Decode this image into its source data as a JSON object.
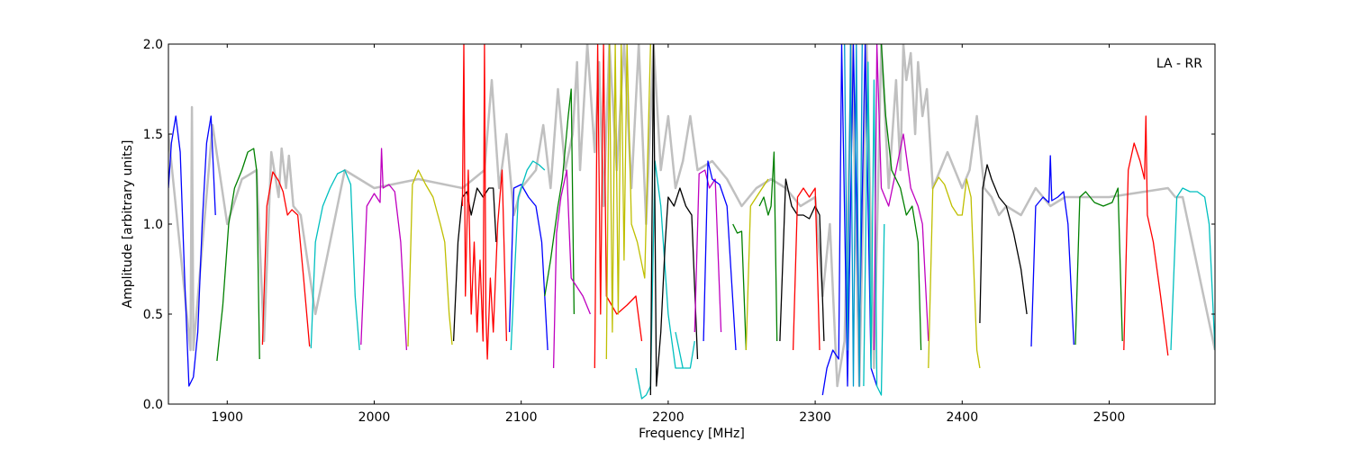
{
  "chart_data": {
    "type": "line",
    "title": "",
    "xlabel": "Frequency [MHz]",
    "ylabel": "Amplitude [arbitrary units]",
    "xlim": [
      1860,
      2572
    ],
    "ylim": [
      0.0,
      2.0
    ],
    "xticks": [
      {
        "value": 1900,
        "label": "1900"
      },
      {
        "value": 2000,
        "label": "2000"
      },
      {
        "value": 2100,
        "label": "2100"
      },
      {
        "value": 2200,
        "label": "2200"
      },
      {
        "value": 2300,
        "label": "2300"
      },
      {
        "value": 2400,
        "label": "2400"
      },
      {
        "value": 2500,
        "label": "2500"
      }
    ],
    "yticks": [
      {
        "value": 0.0,
        "label": "0.0"
      },
      {
        "value": 0.5,
        "label": "0.5"
      },
      {
        "value": 1.0,
        "label": "1.0"
      },
      {
        "value": 1.5,
        "label": "1.5"
      },
      {
        "value": 2.0,
        "label": "2.0"
      }
    ],
    "grid": false,
    "annotation": "LA - RR",
    "annotation_position": "top-right",
    "background_series": {
      "color": "#c0c0c0",
      "x": [
        1860,
        1875,
        1876,
        1877,
        1890,
        1900,
        1910,
        1920,
        1925,
        1930,
        1935,
        1937,
        1940,
        1942,
        1945,
        1950,
        1960,
        1980,
        2000,
        2030,
        2060,
        2075,
        2080,
        2085,
        2090,
        2095,
        2100,
        2110,
        2115,
        2120,
        2125,
        2130,
        2135,
        2138,
        2140,
        2145,
        2150,
        2153,
        2156,
        2160,
        2165,
        2170,
        2175,
        2180,
        2185,
        2190,
        2195,
        2200,
        2205,
        2210,
        2215,
        2220,
        2230,
        2240,
        2250,
        2260,
        2270,
        2280,
        2290,
        2300,
        2305,
        2310,
        2315,
        2320,
        2325,
        2330,
        2335,
        2340,
        2345,
        2350,
        2355,
        2358,
        2360,
        2362,
        2365,
        2368,
        2370,
        2373,
        2376,
        2380,
        2390,
        2400,
        2405,
        2410,
        2415,
        2420,
        2425,
        2430,
        2440,
        2450,
        2460,
        2470,
        2500,
        2540,
        2545,
        2550,
        2572
      ],
      "y": [
        1.5,
        0.3,
        1.65,
        0.3,
        1.55,
        1.0,
        1.25,
        1.3,
        0.35,
        1.4,
        1.15,
        1.42,
        1.2,
        1.38,
        1.1,
        1.05,
        0.5,
        1.3,
        1.2,
        1.25,
        1.2,
        1.3,
        1.8,
        1.2,
        1.5,
        1.05,
        1.2,
        1.3,
        1.55,
        1.2,
        1.75,
        1.3,
        1.5,
        1.9,
        1.3,
        2.0,
        1.4,
        1.9,
        1.1,
        2.0,
        1.3,
        2.0,
        1.2,
        2.0,
        1.0,
        2.0,
        1.3,
        1.6,
        1.2,
        1.35,
        1.6,
        1.3,
        1.35,
        1.25,
        1.1,
        1.2,
        1.25,
        1.2,
        1.1,
        1.15,
        0.6,
        1.0,
        0.1,
        0.35,
        2.0,
        0.1,
        2.0,
        0.2,
        2.0,
        1.2,
        1.8,
        1.3,
        2.0,
        1.8,
        1.95,
        1.5,
        1.9,
        1.6,
        1.75,
        1.2,
        1.4,
        1.2,
        1.3,
        1.6,
        1.2,
        1.15,
        1.05,
        1.1,
        1.05,
        1.2,
        1.1,
        1.15,
        1.15,
        1.2,
        1.15,
        1.15,
        0.3
      ]
    },
    "series": [
      {
        "color": "#0000ff",
        "x": [
          1860,
          1862,
          1865,
          1868,
          1871,
          1874,
          1877,
          1880,
          1883,
          1886,
          1889,
          1892
        ],
        "y": [
          1.2,
          1.45,
          1.6,
          1.4,
          0.7,
          0.1,
          0.15,
          0.4,
          1.0,
          1.45,
          1.6,
          1.05
        ]
      },
      {
        "color": "#008000",
        "x": [
          1893,
          1897,
          1901,
          1905,
          1910,
          1914,
          1918,
          1920,
          1922
        ],
        "y": [
          0.24,
          0.55,
          1.0,
          1.2,
          1.3,
          1.4,
          1.42,
          1.3,
          0.25
        ]
      },
      {
        "color": "#ff0000",
        "x": [
          1924,
          1927,
          1931,
          1935,
          1938,
          1941,
          1944,
          1948,
          1952,
          1956
        ],
        "y": [
          0.33,
          1.1,
          1.29,
          1.24,
          1.18,
          1.05,
          1.08,
          1.05,
          0.7,
          0.32
        ]
      },
      {
        "color": "#00bfbf",
        "x": [
          1957,
          1960,
          1965,
          1970,
          1975,
          1980,
          1984,
          1987,
          1990
        ],
        "y": [
          0.31,
          0.9,
          1.1,
          1.2,
          1.28,
          1.3,
          1.22,
          0.6,
          0.3
        ]
      },
      {
        "color": "#bf00bf",
        "x": [
          1991,
          1995,
          2000,
          2004,
          2005,
          2006,
          2010,
          2014,
          2018,
          2022
        ],
        "y": [
          0.33,
          1.1,
          1.17,
          1.12,
          1.42,
          1.2,
          1.22,
          1.18,
          0.9,
          0.3
        ]
      },
      {
        "color": "#bfbf00",
        "x": [
          2023,
          2026,
          2030,
          2035,
          2040,
          2045,
          2048,
          2051,
          2053
        ],
        "y": [
          0.32,
          1.22,
          1.3,
          1.22,
          1.15,
          1.0,
          0.9,
          0.5,
          0.33
        ]
      },
      {
        "color": "#000000",
        "x": [
          2054,
          2057,
          2060,
          2063,
          2066,
          2070,
          2074,
          2078,
          2081,
          2083
        ],
        "y": [
          0.35,
          0.9,
          1.15,
          1.18,
          1.05,
          1.2,
          1.15,
          1.2,
          1.2,
          0.9
        ]
      },
      {
        "color": "#ff0000",
        "x": [
          2060,
          2061,
          2062,
          2064,
          2066,
          2068,
          2070,
          2072,
          2074,
          2075,
          2076,
          2077,
          2079,
          2081,
          2084,
          2087,
          2090
        ],
        "y": [
          1.1,
          2.0,
          0.6,
          1.3,
          0.5,
          0.9,
          0.4,
          0.8,
          0.35,
          2.0,
          0.5,
          0.25,
          0.7,
          0.4,
          1.0,
          1.3,
          0.35
        ]
      },
      {
        "color": "#0000ff",
        "x": [
          2092,
          2095,
          2100,
          2105,
          2110,
          2114,
          2118
        ],
        "y": [
          0.4,
          1.2,
          1.22,
          1.15,
          1.1,
          0.9,
          0.3
        ]
      },
      {
        "color": "#00bfbf",
        "x": [
          2093,
          2098,
          2104,
          2108,
          2112,
          2116
        ],
        "y": [
          0.3,
          1.15,
          1.3,
          1.35,
          1.33,
          1.3
        ]
      },
      {
        "color": "#008000",
        "x": [
          2116,
          2120,
          2125,
          2128,
          2132,
          2134,
          2136
        ],
        "y": [
          0.6,
          0.8,
          1.1,
          1.25,
          1.6,
          1.75,
          0.5
        ]
      },
      {
        "color": "#bf00bf",
        "x": [
          2122,
          2124,
          2127,
          2131,
          2134,
          2138,
          2142,
          2147
        ],
        "y": [
          0.2,
          0.95,
          1.15,
          1.3,
          0.7,
          0.65,
          0.6,
          0.5
        ]
      },
      {
        "color": "#ff0000",
        "x": [
          2150,
          2152,
          2154,
          2156,
          2158,
          2165,
          2172,
          2178,
          2182
        ],
        "y": [
          0.2,
          2.0,
          0.5,
          2.0,
          0.6,
          0.5,
          0.55,
          0.6,
          0.35
        ]
      },
      {
        "color": "#bfbf00",
        "x": [
          2158,
          2160,
          2162,
          2164,
          2166,
          2168,
          2170,
          2172,
          2175,
          2179,
          2184,
          2188
        ],
        "y": [
          0.25,
          2.0,
          0.4,
          2.0,
          0.5,
          2.0,
          0.8,
          2.0,
          1.0,
          0.9,
          0.7,
          2.0
        ]
      },
      {
        "color": "#00bfbf",
        "x": [
          2178,
          2182,
          2185,
          2188,
          2191,
          2195,
          2200,
          2205,
          2210
        ],
        "y": [
          0.2,
          0.03,
          0.05,
          0.1,
          1.35,
          1.1,
          0.5,
          0.2,
          0.2
        ]
      },
      {
        "color": "#000000",
        "x": [
          2188,
          2190,
          2192,
          2195,
          2198,
          2200,
          2204,
          2208,
          2212,
          2216,
          2220
        ],
        "y": [
          0.05,
          2.0,
          0.1,
          0.4,
          0.9,
          1.15,
          1.1,
          1.2,
          1.1,
          1.05,
          0.25
        ]
      },
      {
        "color": "#00bfbf",
        "x": [
          2205,
          2210,
          2215,
          2218
        ],
        "y": [
          0.4,
          0.2,
          0.2,
          0.35
        ]
      },
      {
        "color": "#bf00bf",
        "x": [
          2218,
          2221,
          2225,
          2228,
          2232,
          2236
        ],
        "y": [
          0.4,
          1.28,
          1.3,
          1.2,
          1.25,
          0.4
        ]
      },
      {
        "color": "#0000ff",
        "x": [
          2224,
          2227,
          2230,
          2235,
          2240,
          2243,
          2246
        ],
        "y": [
          0.35,
          1.35,
          1.25,
          1.22,
          1.1,
          0.7,
          0.3
        ]
      },
      {
        "color": "#008000",
        "x": [
          2244,
          2247,
          2250,
          2253
        ],
        "y": [
          1.0,
          0.95,
          0.96,
          0.3
        ]
      },
      {
        "color": "#bfbf00",
        "x": [
          2253,
          2256,
          2260,
          2264,
          2268
        ],
        "y": [
          0.3,
          1.1,
          1.15,
          1.2,
          1.25
        ]
      },
      {
        "color": "#008000",
        "x": [
          2262,
          2265,
          2268,
          2270,
          2272,
          2274
        ],
        "y": [
          1.1,
          1.15,
          1.05,
          1.1,
          1.4,
          0.35
        ]
      },
      {
        "color": "#000000",
        "x": [
          2276,
          2280,
          2284,
          2288,
          2292,
          2296,
          2300,
          2303,
          2306
        ],
        "y": [
          0.35,
          1.25,
          1.1,
          1.05,
          1.05,
          1.03,
          1.1,
          1.05,
          0.35
        ]
      },
      {
        "color": "#ff0000",
        "x": [
          2285,
          2288,
          2292,
          2296,
          2300,
          2303
        ],
        "y": [
          0.3,
          1.15,
          1.2,
          1.15,
          1.2,
          0.3
        ]
      },
      {
        "color": "#0000ff",
        "x": [
          2305,
          2308,
          2312,
          2316,
          2318,
          2322,
          2326,
          2330,
          2334,
          2338,
          2342
        ],
        "y": [
          0.05,
          0.2,
          0.3,
          0.25,
          2.0,
          0.1,
          2.0,
          0.35,
          2.0,
          0.2,
          0.1
        ]
      },
      {
        "color": "#0099cc",
        "x": [
          2320,
          2322,
          2324,
          2326,
          2328,
          2330,
          2332
        ],
        "y": [
          2.0,
          0.3,
          2.0,
          0.1,
          2.0,
          0.1,
          2.0
        ]
      },
      {
        "color": "#00bfbf",
        "x": [
          2333,
          2336,
          2338,
          2340,
          2342,
          2345,
          2347
        ],
        "y": [
          0.1,
          1.9,
          0.2,
          1.8,
          0.1,
          0.05,
          1.0
        ]
      },
      {
        "color": "#bf00bf",
        "x": [
          2340,
          2342,
          2345,
          2350,
          2355,
          2360,
          2365,
          2370,
          2373,
          2377
        ],
        "y": [
          0.3,
          2.0,
          1.2,
          1.1,
          1.3,
          1.5,
          1.2,
          1.1,
          1.0,
          0.35
        ]
      },
      {
        "color": "#008000",
        "x": [
          2345,
          2348,
          2352,
          2358,
          2362,
          2366,
          2370,
          2372
        ],
        "y": [
          2.0,
          1.6,
          1.3,
          1.2,
          1.05,
          1.1,
          0.9,
          0.3
        ]
      },
      {
        "color": "#bfbf00",
        "x": [
          2377,
          2380,
          2384,
          2388,
          2393,
          2397,
          2400,
          2403,
          2406,
          2410,
          2412
        ],
        "y": [
          0.2,
          1.2,
          1.26,
          1.22,
          1.1,
          1.05,
          1.05,
          1.25,
          1.15,
          0.3,
          0.2
        ]
      },
      {
        "color": "#000000",
        "x": [
          2412,
          2414,
          2417,
          2420,
          2425,
          2430,
          2435,
          2440,
          2444
        ],
        "y": [
          0.45,
          1.2,
          1.33,
          1.25,
          1.15,
          1.1,
          0.95,
          0.75,
          0.5
        ]
      },
      {
        "color": "#0000ff",
        "x": [
          2447,
          2450,
          2455,
          2459,
          2460,
          2461,
          2465,
          2469,
          2472,
          2476
        ],
        "y": [
          0.32,
          1.1,
          1.15,
          1.12,
          1.38,
          1.13,
          1.15,
          1.18,
          1.0,
          0.33
        ]
      },
      {
        "color": "#008000",
        "x": [
          2477,
          2480,
          2484,
          2490,
          2496,
          2502,
          2506,
          2509
        ],
        "y": [
          0.33,
          1.15,
          1.18,
          1.12,
          1.1,
          1.12,
          1.2,
          0.35
        ]
      },
      {
        "color": "#ff0000",
        "x": [
          2510,
          2513,
          2517,
          2521,
          2524,
          2525,
          2526,
          2530,
          2535,
          2540
        ],
        "y": [
          0.3,
          1.3,
          1.45,
          1.35,
          1.25,
          1.6,
          1.05,
          0.9,
          0.6,
          0.27
        ]
      },
      {
        "color": "#00bfbf",
        "x": [
          2542,
          2546,
          2550,
          2555,
          2560,
          2565,
          2568,
          2572
        ],
        "y": [
          0.3,
          1.15,
          1.2,
          1.18,
          1.18,
          1.15,
          1.0,
          0.3
        ]
      }
    ]
  }
}
